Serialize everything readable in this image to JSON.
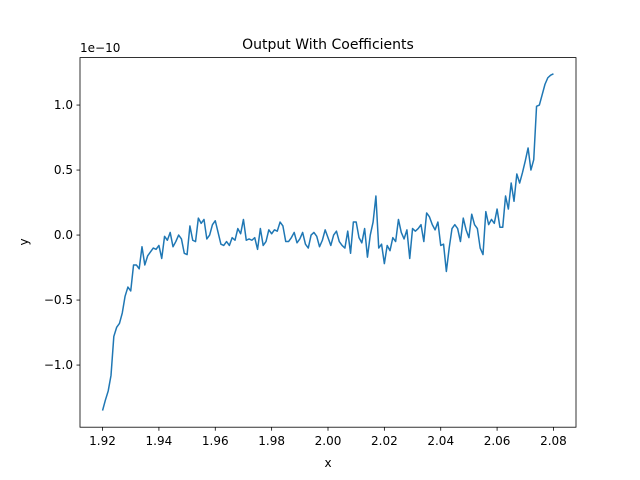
{
  "chart_data": {
    "type": "line",
    "title": "Output With Coefficients",
    "x_label": "x",
    "y_label": "y",
    "y_offset_label": "1e−10",
    "x": [
      1.92,
      1.921,
      1.922,
      1.923,
      1.924,
      1.925,
      1.926,
      1.927,
      1.928,
      1.929,
      1.93,
      1.931,
      1.932,
      1.933,
      1.934,
      1.935,
      1.936,
      1.937,
      1.938,
      1.939,
      1.94,
      1.941,
      1.942,
      1.943,
      1.944,
      1.945,
      1.946,
      1.947,
      1.948,
      1.949,
      1.95,
      1.951,
      1.952,
      1.953,
      1.954,
      1.955,
      1.956,
      1.957,
      1.958,
      1.959,
      1.96,
      1.961,
      1.962,
      1.963,
      1.964,
      1.965,
      1.966,
      1.967,
      1.968,
      1.969,
      1.97,
      1.971,
      1.972,
      1.973,
      1.974,
      1.975,
      1.976,
      1.977,
      1.978,
      1.979,
      1.98,
      1.981,
      1.982,
      1.983,
      1.984,
      1.985,
      1.986,
      1.987,
      1.988,
      1.989,
      1.99,
      1.991,
      1.992,
      1.993,
      1.994,
      1.995,
      1.996,
      1.997,
      1.998,
      1.999,
      2.0,
      2.001,
      2.002,
      2.003,
      2.004,
      2.005,
      2.006,
      2.007,
      2.008,
      2.009,
      2.01,
      2.011,
      2.012,
      2.013,
      2.014,
      2.015,
      2.016,
      2.017,
      2.018,
      2.019,
      2.02,
      2.021,
      2.022,
      2.023,
      2.024,
      2.025,
      2.026,
      2.027,
      2.028,
      2.029,
      2.03,
      2.031,
      2.032,
      2.033,
      2.034,
      2.035,
      2.036,
      2.037,
      2.038,
      2.039,
      2.04,
      2.041,
      2.042,
      2.043,
      2.044,
      2.045,
      2.046,
      2.047,
      2.048,
      2.049,
      2.05,
      2.051,
      2.052,
      2.053,
      2.054,
      2.055,
      2.056,
      2.057,
      2.058,
      2.059,
      2.06,
      2.061,
      2.062,
      2.063,
      2.064,
      2.065,
      2.066,
      2.067,
      2.068,
      2.069,
      2.07,
      2.071,
      2.072,
      2.073,
      2.074,
      2.075,
      2.076,
      2.077,
      2.078,
      2.079,
      2.08
    ],
    "series": [
      {
        "color": "#1f77b4",
        "values": [
          -1.35,
          -1.27,
          -1.2,
          -1.08,
          -0.78,
          -0.71,
          -0.68,
          -0.6,
          -0.47,
          -0.4,
          -0.43,
          -0.23,
          -0.23,
          -0.26,
          -0.09,
          -0.23,
          -0.16,
          -0.13,
          -0.1,
          -0.11,
          -0.08,
          -0.18,
          -0.01,
          -0.04,
          0.02,
          -0.09,
          -0.05,
          0,
          -0.03,
          -0.14,
          -0.15,
          0.07,
          -0.04,
          -0.05,
          0.13,
          0.09,
          0.12,
          -0.03,
          0,
          0.08,
          0.11,
          0.02,
          -0.07,
          -0.08,
          -0.05,
          -0.08,
          -0.02,
          -0.04,
          0.05,
          0.01,
          0.12,
          -0.04,
          -0.03,
          -0.04,
          -0.02,
          -0.11,
          0.05,
          -0.08,
          -0.05,
          0.04,
          0.01,
          0.04,
          0.03,
          0.1,
          0.07,
          -0.05,
          -0.05,
          -0.02,
          0.02,
          -0.06,
          -0.03,
          0.02,
          -0.07,
          -0.1,
          0,
          0.02,
          -0.01,
          -0.09,
          -0.04,
          0.04,
          -0.02,
          -0.08,
          0,
          0.03,
          -0.05,
          -0.08,
          -0.1,
          0.03,
          -0.14,
          0.1,
          0.1,
          -0.02,
          -0.06,
          0.05,
          -0.17,
          0,
          0.1,
          0.3,
          -0.1,
          -0.07,
          -0.22,
          -0.08,
          -0.12,
          -0.02,
          -0.05,
          0.12,
          0.02,
          -0.03,
          0.04,
          -0.18,
          0.05,
          0.03,
          0.05,
          0.08,
          -0.05,
          0.17,
          0.14,
          0.08,
          0.04,
          0.1,
          -0.08,
          -0.07,
          -0.28,
          -0.1,
          0.05,
          0.08,
          0.05,
          -0.05,
          0.13,
          0.04,
          -0.02,
          0.16,
          0.08,
          0.05,
          -0.1,
          -0.15,
          0.18,
          0.08,
          0.12,
          0.09,
          0.2,
          0.06,
          0.06,
          0.3,
          0.2,
          0.4,
          0.26,
          0.47,
          0.4,
          0.48,
          0.57,
          0.67,
          0.5,
          0.58,
          0.99,
          1,
          1.08,
          1.16,
          1.21,
          1.23,
          1.24
        ]
      }
    ],
    "xlim": [
      1.912,
      2.088
    ],
    "xticks": [
      1.92,
      1.94,
      1.96,
      1.98,
      {
        "value": 2,
        "label": "2.00"
      },
      2.02,
      2.04,
      2.06,
      2.08
    ],
    "ylim": [
      -1.478,
      1.365
    ],
    "yticks": [
      {
        "value": -1,
        "label": "−1.0"
      },
      {
        "value": -0.5,
        "label": "−0.5"
      },
      {
        "value": 0,
        "label": "0.0"
      },
      0.5,
      {
        "value": 1,
        "label": "1.0"
      }
    ],
    "grid": false
  }
}
